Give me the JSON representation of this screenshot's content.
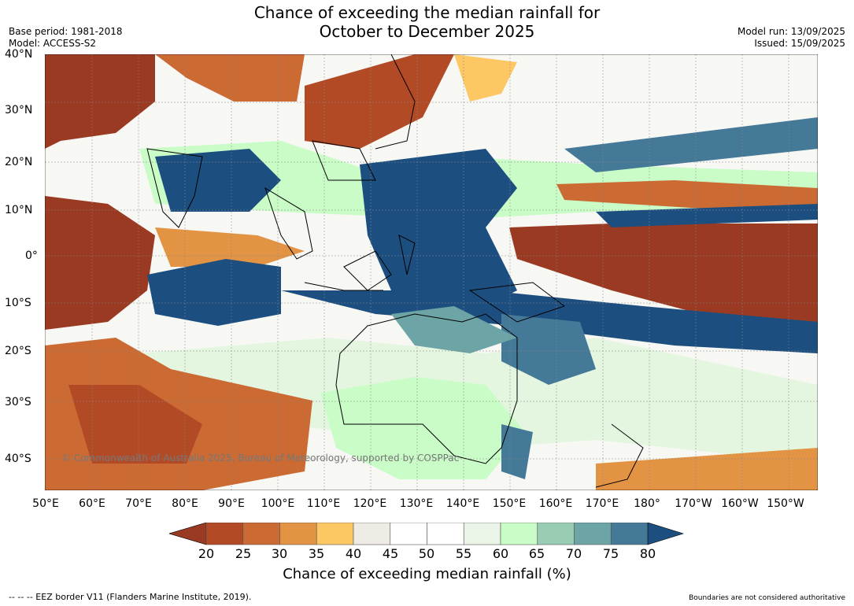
{
  "title_line1": "Chance of exceeding the median rainfall for",
  "title_line2": "October to December 2025",
  "base_period": "Base period: 1981-2018",
  "model": "Model: ACCESS-S2",
  "model_run": "Model run: 13/09/2025",
  "issued": "Issued: 15/09/2025",
  "latitudes": [
    "40°N",
    "30°N",
    "20°N",
    "10°N",
    "0°",
    "10°S",
    "20°S",
    "30°S",
    "40°S"
  ],
  "longitudes": [
    "50°E",
    "60°E",
    "70°E",
    "80°E",
    "90°E",
    "100°E",
    "110°E",
    "120°E",
    "130°E",
    "140°E",
    "150°E",
    "160°E",
    "170°E",
    "180°",
    "170°W",
    "160°W",
    "150°W"
  ],
  "colorbar": {
    "ticks": [
      "20",
      "25",
      "30",
      "35",
      "40",
      "45",
      "50",
      "55",
      "60",
      "65",
      "70",
      "75",
      "80"
    ],
    "colors": [
      "#9a3a22",
      "#b34a26",
      "#cc6a33",
      "#e29343",
      "#fdc764",
      "#eeebe4",
      "#ffffff",
      "#ffffff",
      "#eaf5e8",
      "#c9fcc6",
      "#98cdb3",
      "#6da4a6",
      "#457998",
      "#1c4f80"
    ],
    "title": "Chance of exceeding median rainfall (%)"
  },
  "copyright": "© Commonwealth of Australia 2025, Bureau of Meteorology, supported by COSPPac",
  "footer_left": "--  --  -- EEZ border V11 (Flanders Marine Institute, 2019).",
  "footer_right": "Boundaries are not considered authoritative"
}
